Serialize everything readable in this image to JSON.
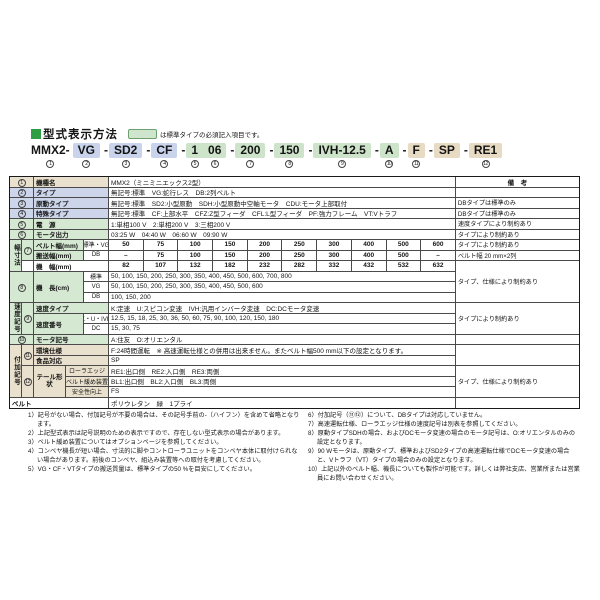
{
  "page": {
    "section_title": "型式表示方法",
    "legend_note": "は標準タイプの必須記入項目です。"
  },
  "model_code": {
    "parts": [
      {
        "text": "MMX2-",
        "num": "1"
      },
      {
        "text": "VG",
        "num": "2"
      },
      {
        "text": "-"
      },
      {
        "text": "SD2",
        "num": "3"
      },
      {
        "text": "-"
      },
      {
        "text": "CF",
        "num": "4"
      },
      {
        "text": "-"
      },
      {
        "text": "1",
        "num": "5"
      },
      {
        "text": "06",
        "num": "6"
      },
      {
        "text": "-"
      },
      {
        "text": "200",
        "num": "7"
      },
      {
        "text": "-"
      },
      {
        "text": "150",
        "num": "8"
      },
      {
        "text": "-"
      },
      {
        "text": "IVH-12.5",
        "num": "9"
      },
      {
        "text": "-"
      },
      {
        "text": "A",
        "num": "10"
      },
      {
        "text": "-"
      },
      {
        "text": "F",
        "num": "11"
      },
      {
        "text": "-"
      },
      {
        "text": "SP"
      },
      {
        "text": "-"
      },
      {
        "text": "RE1",
        "num": "12"
      }
    ]
  },
  "table": {
    "remark_header": "備　考",
    "group_labels": {
      "width": "幅寸法",
      "speed": "速度記号",
      "addon": "付加記号"
    },
    "rows": {
      "kishumei": {
        "num": "1",
        "label": "機種名",
        "value": "MMX2（ミニミニエックス2型）"
      },
      "type": {
        "num": "2",
        "label": "タイプ",
        "value": "無記号:標準　VG:蛇行レス　DB:2列ベルト",
        "remark": ""
      },
      "gendo": {
        "num": "3",
        "label": "原動タイプ",
        "value": "無記号:標準　SD2:小型原動　SDH:小型原動中空軸モータ　CDU:モータ上部取付",
        "remark": "DBタイプは標準のみ"
      },
      "tokushu": {
        "num": "4",
        "label": "特殊タイプ",
        "value": "無記号:標準　CF:上部水平　CFZ:Z型フィーダ　CFL:L型フィーダ　PF:強力フレーム　VT:Vトラフ",
        "remark": "DBタイプは標準のみ"
      },
      "dengen": {
        "num": "5",
        "label": "電　源",
        "value": "1:単相100 V　2:単相200 V　3:三相200 V",
        "remark": "速度タイプにより制約あり"
      },
      "motor_output": {
        "num": "6",
        "label": "モータ出力",
        "value": "03:25 W　04:40 W　06:60 W　09:90 W",
        "remark": "タイプにより制約あり"
      },
      "belt_width": {
        "num": "7",
        "label": "ベルト幅(mm)",
        "sub": "標準・VG",
        "values": [
          "50",
          "75",
          "100",
          "150",
          "200",
          "250",
          "300",
          "400",
          "500",
          "600"
        ],
        "remark": "タイプにより制約あり"
      },
      "conveying_width": {
        "label": "搬送幅(mm)",
        "sub": "DB",
        "values": [
          "–",
          "75",
          "100",
          "150",
          "200",
          "250",
          "300",
          "400",
          "500",
          "–"
        ],
        "remark": "ベルト幅 20 mm×2列"
      },
      "machine_width": {
        "label": "機　幅(mm)",
        "values": [
          "82",
          "107",
          "132",
          "182",
          "232",
          "282",
          "332",
          "432",
          "532",
          "632"
        ],
        "remark_merged": "タイプ、仕様により制約あり"
      },
      "machine_length": {
        "num": "8",
        "label": "機　長(cm)",
        "std": {
          "sub": "標準",
          "value": "50, 100, 150, 200, 250, 300, 350, 400, 450, 500, 600, 700, 800"
        },
        "vg": {
          "sub": "VG",
          "value": "50, 100, 150, 200, 250, 300, 350, 400, 450, 500, 600"
        },
        "db": {
          "sub": "DB",
          "value": "100, 150, 200"
        }
      },
      "speed_type": {
        "num": "9",
        "label": "速度タイプ",
        "value": "K:定速　U:スピコン変速　IVH:汎用インバータ変速　DC:DCモータ変速",
        "remark_merged": "タイプにより制約あり"
      },
      "speed_no": {
        "label": "速度番号",
        "kuivh": {
          "sub": "K・U・IVH",
          "value": "12.5, 15, 18, 25, 30, 36, 50, 60, 75, 90, 100, 120, 150, 180"
        },
        "dc": {
          "sub": "DC",
          "value": "15, 30, 75"
        }
      },
      "motor_symbol": {
        "num": "10",
        "label": "モータ記号",
        "value": "A:住友　O:オリエンタル",
        "remark": ""
      },
      "env_spec": {
        "num": "11",
        "label": "環境仕様",
        "value": "F:24時間運転　※ 高速運転仕様との併用は出来ません。またベルト幅500 mm以下の設定となります。"
      },
      "food": {
        "label": "食品対応",
        "value": "SP"
      },
      "tail": {
        "num": "12",
        "label": "テール形状",
        "roller": {
          "sub": "ローラエッジ",
          "value": "RE1:出口側　RE2:入口側　RE3:両側"
        },
        "loosen": {
          "sub": "ベルト緩め装置",
          "value": "BL1:出口側　BL2:入口側　BL3:両側"
        },
        "safety": {
          "sub": "安全性向上",
          "value": "FS"
        },
        "remark_merged": "タイプ、仕様により制約あり"
      },
      "belt": {
        "label": "ベルト",
        "value": "ポリウレタン　緑　1プライ",
        "remark": ""
      }
    }
  },
  "footnotes": {
    "left": [
      "1）記号がない場合、付加記号が不要の場合は、その記号手前の-（ハイフン）を含めて省略となります。",
      "2）上記型式表示は記号説明のための表示ですので、存在しない型式表示の場合があります。",
      "3）ベルト緩め装置についてはオプションページを参照してください。",
      "4）コンベヤ機長が短い場合、寸法的に脚やコントローラユニットをコンベヤ本体に取付けられない場合があります。前後のコンベヤ、組込み装置等への取付を考慮してください。",
      "5）VG・CF・VTタイプの搬送質量は、標準タイプの50 %を目安にしてください。"
    ],
    "right": [
      "6）付加記号（⑪⑫）について、DBタイプは対応していません。",
      "7）高速運転仕様、ローラエッジ仕様の速度記号は別表を参照してください。",
      "8）原動タイプSDHの場合、およびDCモータ変速の場合のモータ記号は、O:オリエンタルのみの設定となります。",
      "9）90 Wモータは、原動タイプ、標準およびSD2タイプの高速運転仕様でDCモータ変速の場合と、Vトラフ（VT）タイプの場合のみの設定となります。",
      "10）上記以外のベルト幅、機長についても製作が可能です。詳しくは弊社支店、営業所または営業員にお問い合わせください。"
    ]
  }
}
